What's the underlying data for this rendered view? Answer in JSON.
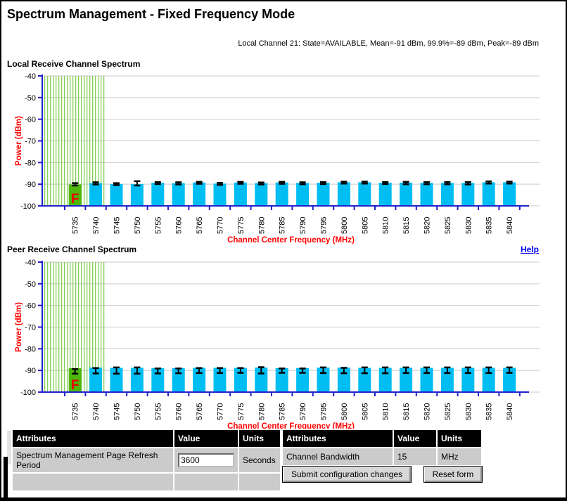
{
  "page": {
    "title": "Spectrum Management - Fixed Frequency Mode",
    "status_line": "Local Channel 21: State=AVAILABLE, Mean=-91 dBm, 99.9%=-89 dBm, Peak=-89 dBm",
    "help_label": "Help"
  },
  "colors": {
    "bar": "#00bdf2",
    "selected_bar": "#4cb80e",
    "hatch": "#86cf58",
    "axis": "#2222cc",
    "grid": "#c9c9c9",
    "axis_title": "#ff0000",
    "marker": "#ee0000",
    "tick_text": "#000000",
    "link": "#0000ee"
  },
  "chart_data": [
    {
      "type": "bar",
      "title": "Local Receive Channel Spectrum",
      "xlabel": "Channel Center Frequency (MHz)",
      "ylabel": "Power (dBm)",
      "ylim": [
        -100,
        -40
      ],
      "yticks": [
        -40,
        -50,
        -60,
        -70,
        -80,
        -90,
        -100
      ],
      "grid": true,
      "selected_marker": "F",
      "highlight_channels": 2,
      "bars": [
        {
          "freq": "5735",
          "top": -90.1,
          "hi": -89.5,
          "lo": -90.6,
          "selected": true
        },
        {
          "freq": "5740",
          "top": -89.5,
          "hi": -89.1,
          "lo": -90.1
        },
        {
          "freq": "5745",
          "top": -89.9,
          "hi": -89.5,
          "lo": -90.4
        },
        {
          "freq": "5750",
          "top": -89.9,
          "hi": -88.6,
          "lo": -90.6
        },
        {
          "freq": "5755",
          "top": -89.3,
          "hi": -89.0,
          "lo": -89.9
        },
        {
          "freq": "5760",
          "top": -89.5,
          "hi": -89.1,
          "lo": -90.1
        },
        {
          "freq": "5765",
          "top": -89.2,
          "hi": -88.9,
          "lo": -89.8
        },
        {
          "freq": "5770",
          "top": -89.7,
          "hi": -89.4,
          "lo": -90.3
        },
        {
          "freq": "5775",
          "top": -89.2,
          "hi": -88.9,
          "lo": -89.8
        },
        {
          "freq": "5780",
          "top": -89.5,
          "hi": -89.2,
          "lo": -90.1
        },
        {
          "freq": "5785",
          "top": -89.2,
          "hi": -88.9,
          "lo": -89.8
        },
        {
          "freq": "5790",
          "top": -89.4,
          "hi": -89.1,
          "lo": -90.0
        },
        {
          "freq": "5795",
          "top": -89.3,
          "hi": -89.0,
          "lo": -89.9
        },
        {
          "freq": "5800",
          "top": -89.1,
          "hi": -88.8,
          "lo": -89.7
        },
        {
          "freq": "5805",
          "top": -89.1,
          "hi": -88.8,
          "lo": -89.7
        },
        {
          "freq": "5810",
          "top": -89.3,
          "hi": -89.0,
          "lo": -89.9
        },
        {
          "freq": "5815",
          "top": -89.3,
          "hi": -88.9,
          "lo": -90.0
        },
        {
          "freq": "5820",
          "top": -89.4,
          "hi": -89.0,
          "lo": -90.0
        },
        {
          "freq": "5825",
          "top": -89.4,
          "hi": -89.0,
          "lo": -90.0
        },
        {
          "freq": "5830",
          "top": -89.4,
          "hi": -89.0,
          "lo": -90.1
        },
        {
          "freq": "5835",
          "top": -89.1,
          "hi": -88.7,
          "lo": -89.7
        },
        {
          "freq": "5840",
          "top": -89.1,
          "hi": -88.8,
          "lo": -89.7
        }
      ]
    },
    {
      "type": "bar",
      "title": "Peer Receive Channel Spectrum",
      "xlabel": "Channel Center Frequency (MHz)",
      "ylabel": "Power (dBm)",
      "ylim": [
        -100,
        -40
      ],
      "yticks": [
        -40,
        -50,
        -60,
        -70,
        -80,
        -90,
        -100
      ],
      "grid": true,
      "selected_marker": "F",
      "highlight_channels": 2,
      "bars": [
        {
          "freq": "5735",
          "top": -89.0,
          "hi": -89.4,
          "lo": -91.5,
          "selected": true
        },
        {
          "freq": "5740",
          "top": -88.7,
          "hi": -88.9,
          "lo": -91.4
        },
        {
          "freq": "5745",
          "top": -88.8,
          "hi": -88.6,
          "lo": -91.5
        },
        {
          "freq": "5750",
          "top": -88.8,
          "hi": -88.6,
          "lo": -91.5
        },
        {
          "freq": "5755",
          "top": -88.9,
          "hi": -89.1,
          "lo": -91.4
        },
        {
          "freq": "5760",
          "top": -88.9,
          "hi": -89.1,
          "lo": -91.3
        },
        {
          "freq": "5765",
          "top": -88.8,
          "hi": -88.9,
          "lo": -91.2
        },
        {
          "freq": "5770",
          "top": -88.8,
          "hi": -88.9,
          "lo": -91.2
        },
        {
          "freq": "5775",
          "top": -88.8,
          "hi": -88.9,
          "lo": -91.1
        },
        {
          "freq": "5780",
          "top": -88.7,
          "hi": -88.5,
          "lo": -91.4
        },
        {
          "freq": "5785",
          "top": -88.9,
          "hi": -89.1,
          "lo": -91.1
        },
        {
          "freq": "5790",
          "top": -88.9,
          "hi": -89.1,
          "lo": -91.1
        },
        {
          "freq": "5795",
          "top": -88.7,
          "hi": -88.6,
          "lo": -91.2
        },
        {
          "freq": "5800",
          "top": -88.7,
          "hi": -88.8,
          "lo": -91.3
        },
        {
          "freq": "5805",
          "top": -88.8,
          "hi": -88.6,
          "lo": -91.3
        },
        {
          "freq": "5810",
          "top": -88.8,
          "hi": -88.6,
          "lo": -91.3
        },
        {
          "freq": "5815",
          "top": -88.8,
          "hi": -88.6,
          "lo": -91.2
        },
        {
          "freq": "5820",
          "top": -88.8,
          "hi": -88.6,
          "lo": -91.2
        },
        {
          "freq": "5825",
          "top": -88.8,
          "hi": -88.6,
          "lo": -91.2
        },
        {
          "freq": "5830",
          "top": -88.8,
          "hi": -88.6,
          "lo": -91.2
        },
        {
          "freq": "5835",
          "top": -88.8,
          "hi": -88.6,
          "lo": -91.2
        },
        {
          "freq": "5840",
          "top": -88.8,
          "hi": -88.6,
          "lo": -91.1
        }
      ]
    }
  ],
  "tables": {
    "left": {
      "headers": [
        "Attributes",
        "Value",
        "Units"
      ],
      "rows": [
        {
          "attribute": "Spectrum Management Page Refresh Period",
          "value": "3600",
          "units": "Seconds"
        },
        {
          "attribute": "",
          "value": "",
          "units": ""
        }
      ]
    },
    "right": {
      "headers": [
        "Attributes",
        "Value",
        "Units"
      ],
      "rows": [
        {
          "attribute": "Channel Bandwidth",
          "value": "15",
          "units": "MHz"
        }
      ]
    }
  },
  "buttons": {
    "submit": "Submit configuration changes",
    "reset": "Reset form"
  }
}
